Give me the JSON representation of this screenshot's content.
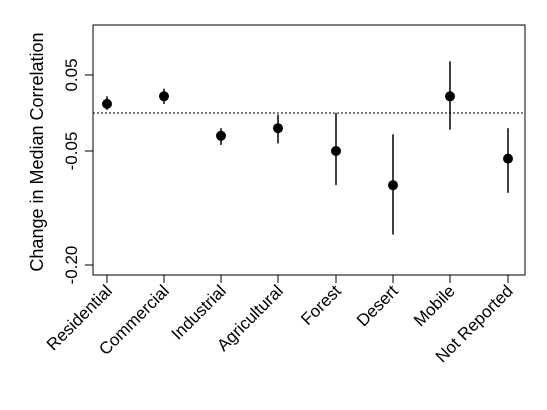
{
  "chart_data": {
    "type": "scatter",
    "ylabel": "Change in Median Correlation",
    "categories": [
      "Residential",
      "Commercial",
      "Industrial",
      "Agricultural",
      "Forest",
      "Desert",
      "Mobile",
      "Not Reported"
    ],
    "values": [
      0.012,
      0.022,
      -0.03,
      -0.02,
      -0.05,
      -0.095,
      0.022,
      -0.06
    ],
    "error_low": [
      0.004,
      0.012,
      -0.042,
      -0.04,
      -0.095,
      -0.16,
      -0.022,
      -0.105
    ],
    "error_high": [
      0.022,
      0.032,
      -0.02,
      -0.002,
      0.0,
      -0.028,
      0.068,
      -0.02
    ],
    "yticks": [
      0.05,
      -0.05,
      -0.2
    ],
    "ytick_labels": [
      "0.05",
      "-0.05",
      "-0.20"
    ],
    "reference_line": 0,
    "grid": false
  }
}
